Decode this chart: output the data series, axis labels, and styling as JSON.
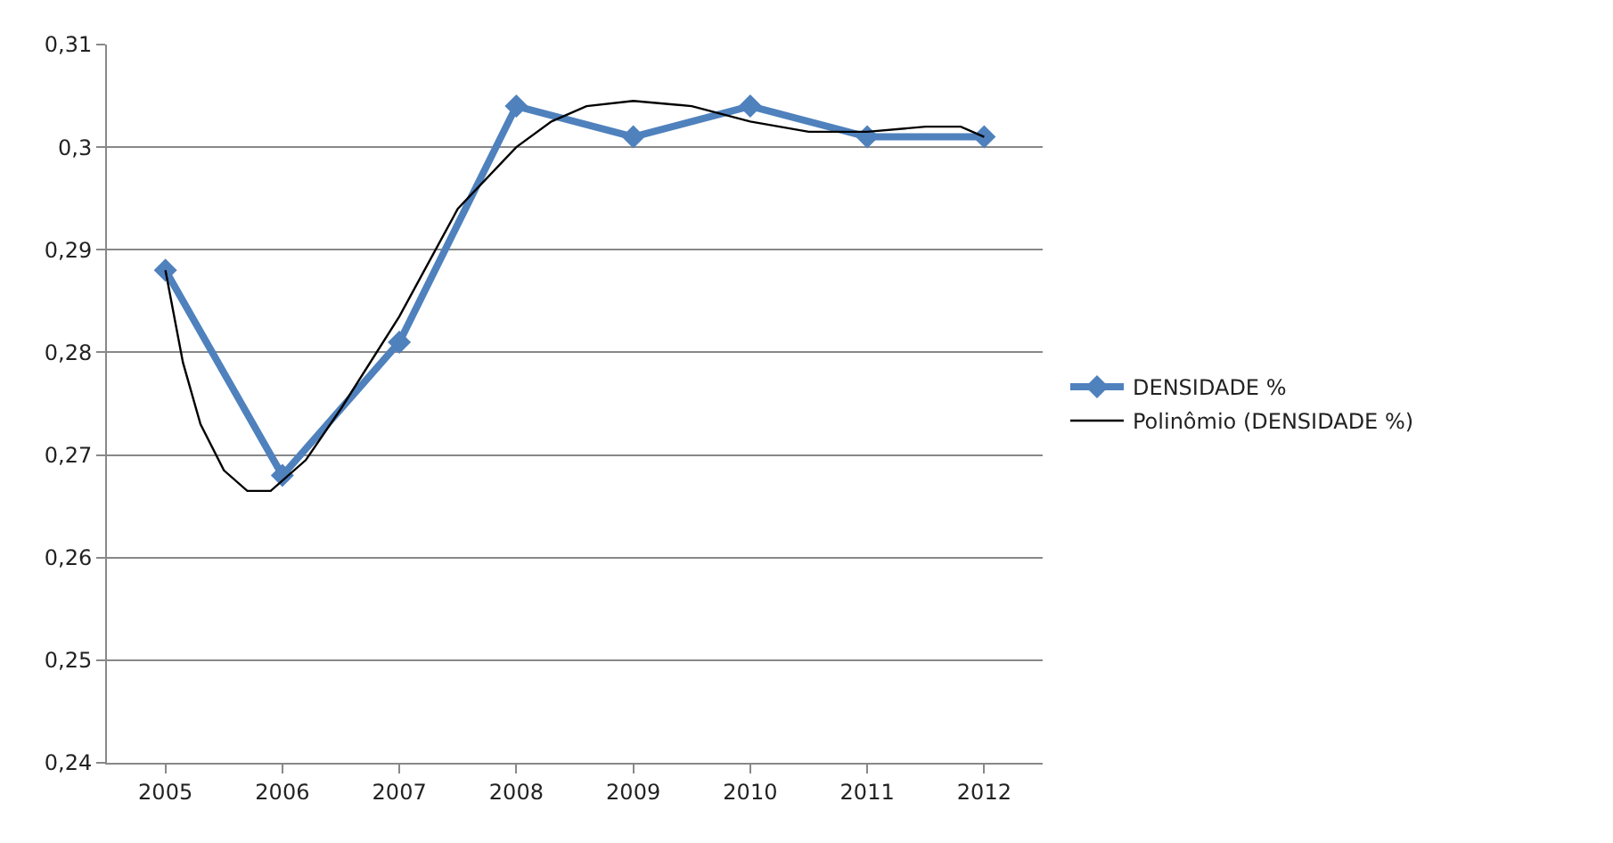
{
  "chart_data": {
    "type": "line",
    "x": [
      2005,
      2006,
      2007,
      2008,
      2009,
      2010,
      2011,
      2012
    ],
    "xlim": [
      2004.5,
      2012.5
    ],
    "xticks": [
      2005,
      2006,
      2007,
      2008,
      2009,
      2010,
      2011,
      2012
    ],
    "ylim": [
      0.24,
      0.31
    ],
    "yticks": [
      {
        "value": 0.24,
        "label": "0,24"
      },
      {
        "value": 0.25,
        "label": "0,25"
      },
      {
        "value": 0.26,
        "label": "0,26"
      },
      {
        "value": 0.27,
        "label": "0,27"
      },
      {
        "value": 0.28,
        "label": "0,28"
      },
      {
        "value": 0.29,
        "label": "0,29"
      },
      {
        "value": 0.3,
        "label": "0,3"
      },
      {
        "value": 0.31,
        "label": "0,31"
      }
    ],
    "series": [
      {
        "name": "DENSIDADE %",
        "color": "#4f81bd",
        "marker": "diamond",
        "values": [
          0.288,
          0.268,
          0.281,
          0.304,
          0.301,
          0.304,
          0.301,
          0.301
        ]
      },
      {
        "name": "Polinômio (DENSIDADE %)",
        "color": "#000000",
        "marker": "none",
        "x": [
          2005,
          2005.15,
          2005.3,
          2005.5,
          2005.7,
          2005.9,
          2006.2,
          2006.5,
          2007,
          2007.5,
          2008,
          2008.3,
          2008.6,
          2009,
          2009.5,
          2010,
          2010.5,
          2011,
          2011.5,
          2011.8,
          2012
        ],
        "values": [
          0.288,
          0.279,
          0.273,
          0.2685,
          0.2665,
          0.2665,
          0.2695,
          0.2745,
          0.2835,
          0.294,
          0.3,
          0.3025,
          0.304,
          0.3045,
          0.304,
          0.3025,
          0.3015,
          0.3015,
          0.302,
          0.302,
          0.301
        ]
      }
    ],
    "grid": "y",
    "legend": "right",
    "line_style": "solid"
  }
}
